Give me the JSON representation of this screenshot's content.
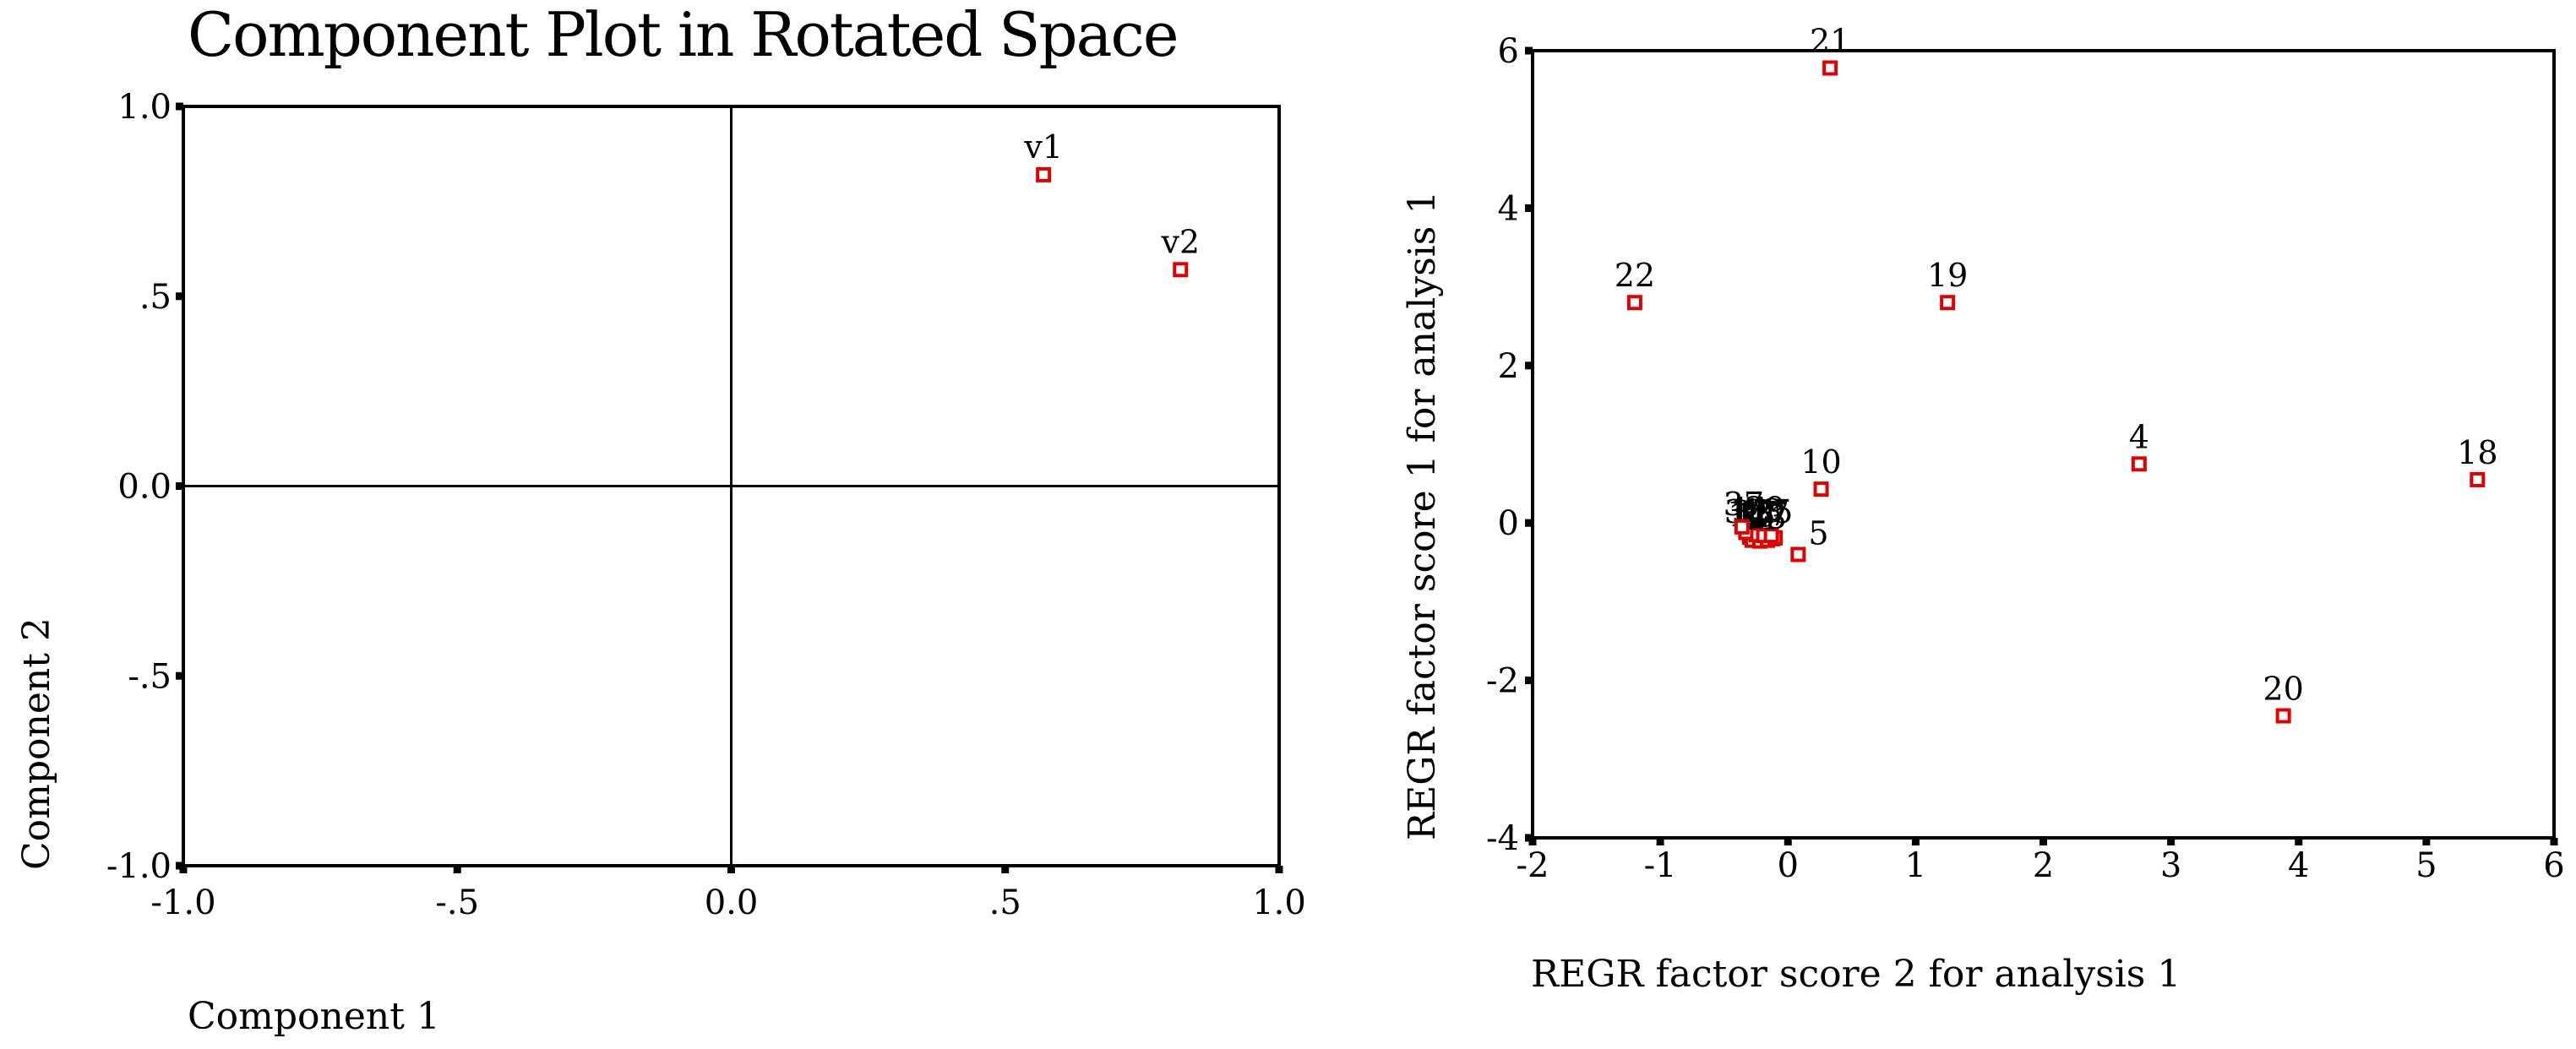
{
  "chart_data": [
    {
      "type": "scatter",
      "title": "Component Plot in Rotated Space",
      "xlabel": "Component 1",
      "ylabel": "Component 2",
      "xlim": [
        -1.0,
        1.0
      ],
      "ylim": [
        -1.0,
        1.0
      ],
      "xticks": [
        -1.0,
        -0.5,
        0.0,
        0.5,
        1.0
      ],
      "xtick_labels": [
        "-1.0",
        "-.5",
        "0.0",
        ".5",
        "1.0"
      ],
      "yticks": [
        1.0,
        0.5,
        0.0,
        -0.5,
        -1.0
      ],
      "ytick_labels": [
        "1.0",
        ".5",
        "0.0",
        "-.5",
        "-1.0"
      ],
      "reference_lines": {
        "x": 0,
        "y": 0
      },
      "marker_color": "#e00000",
      "points": [
        {
          "label": "v1",
          "x": 0.57,
          "y": 0.82
        },
        {
          "label": "v2",
          "x": 0.82,
          "y": 0.57
        }
      ]
    },
    {
      "type": "scatter",
      "title": "",
      "xlabel": "REGR factor score   2 for analysis    1",
      "ylabel": "REGR factor score   1 for analysis    1",
      "xlim": [
        -2,
        6
      ],
      "ylim": [
        -4,
        6
      ],
      "xticks": [
        -2,
        -1,
        0,
        1,
        2,
        3,
        4,
        5,
        6
      ],
      "xtick_labels": [
        "-2",
        "-1",
        "0",
        "1",
        "2",
        "3",
        "4",
        "5",
        "6"
      ],
      "yticks": [
        -4,
        -2,
        0,
        2,
        4,
        6
      ],
      "ytick_labels": [
        "-4",
        "-2",
        "0",
        "2",
        "4",
        "6"
      ],
      "marker_color": "#e00000",
      "points": [
        {
          "label": "21",
          "x": 0.33,
          "y": 5.78
        },
        {
          "label": "22",
          "x": -1.2,
          "y": 2.8
        },
        {
          "label": "19",
          "x": 1.25,
          "y": 2.8
        },
        {
          "label": "10",
          "x": 0.26,
          "y": 0.43
        },
        {
          "label": "4",
          "x": 2.75,
          "y": 0.75
        },
        {
          "label": "18",
          "x": 5.4,
          "y": 0.55
        },
        {
          "label": "5",
          "x": 0.08,
          "y": -0.4
        },
        {
          "label": "20",
          "x": 3.88,
          "y": -2.45
        },
        {
          "label": "37",
          "x": -0.36,
          "y": -0.05
        }
      ],
      "cluster_points": [
        {
          "x": -0.3,
          "y": -0.18
        },
        {
          "x": -0.27,
          "y": -0.2
        },
        {
          "x": -0.24,
          "y": -0.17
        },
        {
          "x": -0.21,
          "y": -0.19
        },
        {
          "x": -0.18,
          "y": -0.21
        },
        {
          "x": -0.15,
          "y": -0.18
        },
        {
          "x": -0.12,
          "y": -0.2
        },
        {
          "x": -0.28,
          "y": -0.22
        },
        {
          "x": -0.22,
          "y": -0.23
        },
        {
          "x": -0.16,
          "y": -0.22
        },
        {
          "x": -0.1,
          "y": -0.19
        },
        {
          "x": -0.25,
          "y": -0.15
        },
        {
          "x": -0.19,
          "y": -0.16
        },
        {
          "x": -0.13,
          "y": -0.16
        },
        {
          "x": -0.33,
          "y": -0.12
        }
      ],
      "cluster_labels": [
        {
          "text": "38",
          "x": -0.34,
          "y": 0.13
        },
        {
          "text": "11",
          "x": -0.29,
          "y": 0.16
        },
        {
          "text": "17",
          "x": -0.24,
          "y": 0.11
        },
        {
          "text": "13",
          "x": -0.2,
          "y": 0.14
        },
        {
          "text": "27",
          "x": -0.15,
          "y": 0.1
        },
        {
          "text": "16",
          "x": -0.26,
          "y": 0.08
        },
        {
          "text": "29",
          "x": -0.18,
          "y": 0.17
        },
        {
          "text": "14",
          "x": -0.31,
          "y": 0.09
        },
        {
          "text": "31",
          "x": -0.22,
          "y": 0.05
        },
        {
          "text": "25",
          "x": -0.12,
          "y": 0.13
        },
        {
          "text": "33",
          "x": -0.28,
          "y": 0.12
        },
        {
          "text": "23",
          "x": -0.17,
          "y": 0.06
        }
      ]
    }
  ]
}
